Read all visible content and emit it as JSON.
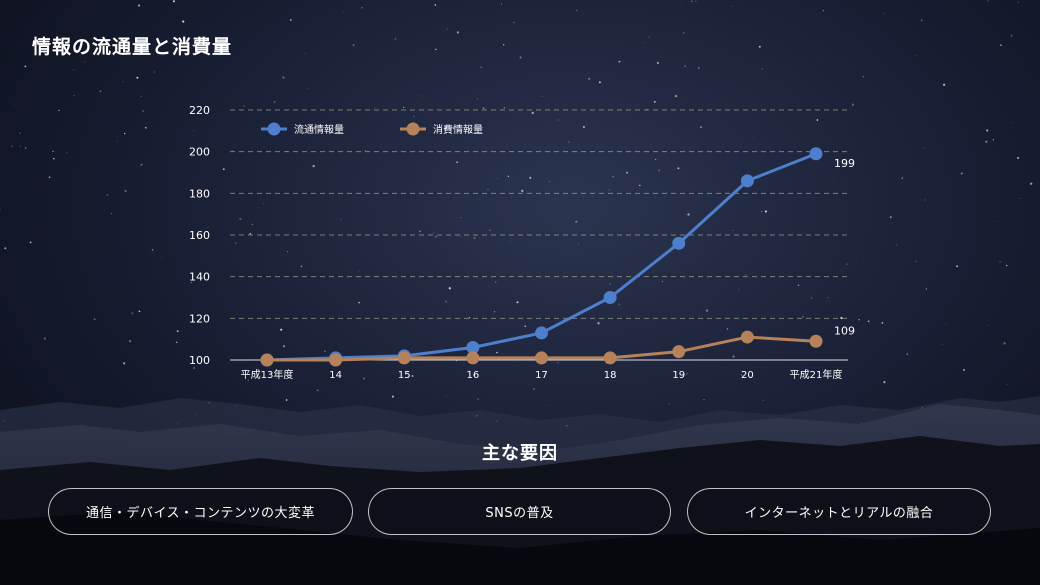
{
  "title": "情報の流通量と消費量",
  "chart_data": {
    "type": "line",
    "categories": [
      "平成13年度",
      "14",
      "15",
      "16",
      "17",
      "18",
      "19",
      "20",
      "平成21年度"
    ],
    "series": [
      {
        "name": "流通情報量",
        "color": "#4d7fcc",
        "values": [
          100,
          101,
          102,
          106,
          113,
          130,
          156,
          186,
          199
        ],
        "end_label": "199"
      },
      {
        "name": "消費情報量",
        "color": "#b5825a",
        "values": [
          100,
          100,
          101,
          101,
          101,
          101,
          104,
          111,
          109
        ],
        "end_label": "109"
      }
    ],
    "ylim": [
      100,
      220
    ],
    "yticks": [
      "100",
      "120",
      "140",
      "160",
      "180",
      "200",
      "220"
    ],
    "grid": true,
    "legend_position": "top-left"
  },
  "factors": {
    "title": "主な要因",
    "items": [
      "通信・デバイス・コンテンツの大変革",
      "SNSの普及",
      "インターネットとリアルの融合"
    ]
  }
}
